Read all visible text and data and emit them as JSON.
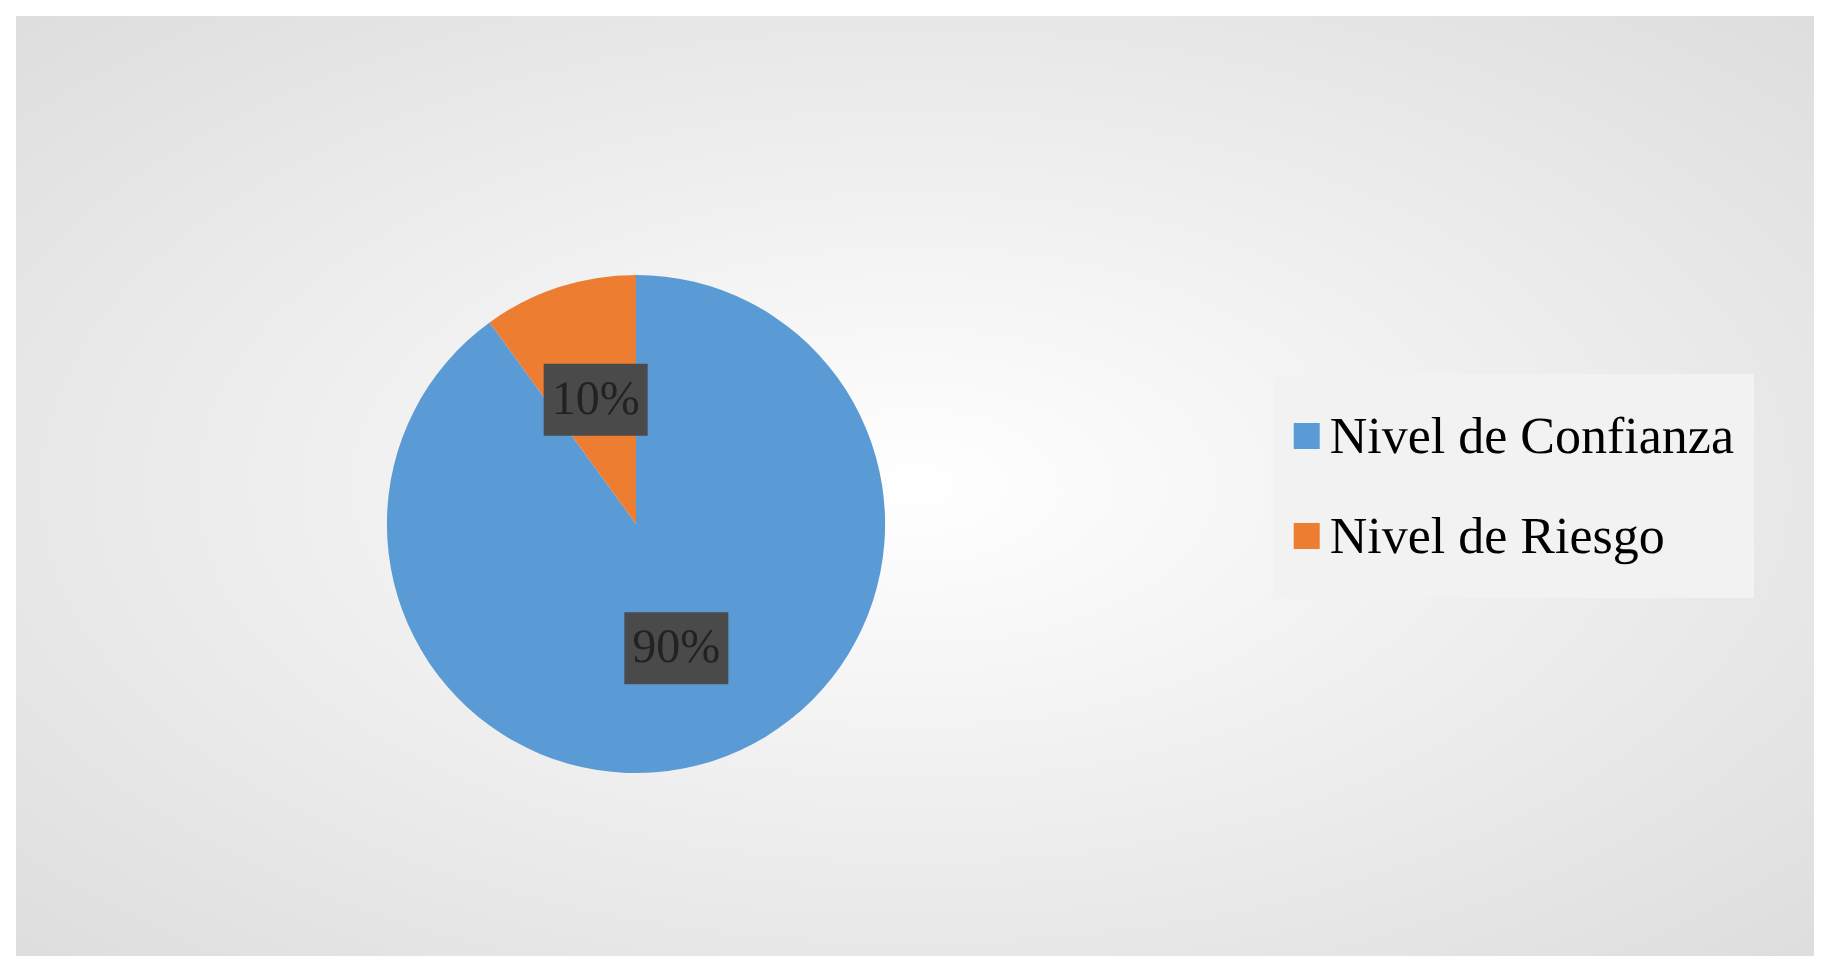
{
  "chart_data": {
    "type": "pie",
    "categories": [
      "Nivel de Confianza",
      "Nivel de Riesgo"
    ],
    "values": [
      90,
      10
    ],
    "colors": [
      "#5b9bd5",
      "#ed7d31"
    ],
    "value_labels": [
      "90%",
      "10%"
    ],
    "legend": "right"
  }
}
